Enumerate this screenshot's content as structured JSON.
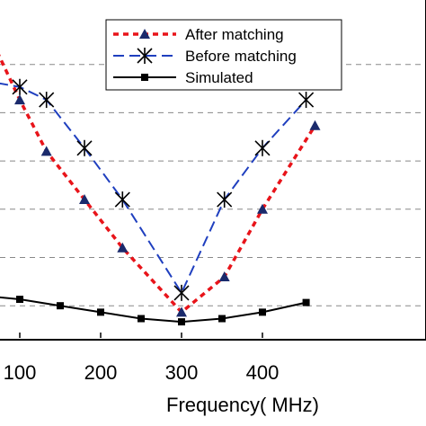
{
  "chart_data": {
    "type": "line",
    "title": "",
    "xlabel": "Frequency( MHz)",
    "ylabel": "",
    "xlim": [
      72,
      474
    ],
    "ylim": [
      0,
      10
    ],
    "x_ticks": [
      100,
      200,
      300,
      400
    ],
    "grid": "horizontal-dashed",
    "legend_position": "top-right",
    "series": [
      {
        "name": "After matching",
        "color": "#e8141a",
        "line_style": "short-dash",
        "marker": "triangle",
        "marker_color": "#1a2a6c",
        "x": [
          72,
          100,
          133,
          180,
          227,
          300,
          353,
          400,
          465
        ],
        "y": [
          8.9,
          7.4,
          5.8,
          4.3,
          2.8,
          0.8,
          1.9,
          4.0,
          6.6
        ],
        "markers": [
          100,
          133,
          180,
          227,
          300,
          353,
          400,
          465
        ]
      },
      {
        "name": "Before matching",
        "color": "#1f3fbf",
        "line_style": "long-dash",
        "marker": "star",
        "marker_color": "#000000",
        "x": [
          20,
          55,
          100,
          133,
          180,
          227,
          300,
          353,
          400,
          454
        ],
        "y": [
          8.6,
          8.0,
          7.8,
          7.4,
          5.9,
          4.3,
          1.4,
          4.3,
          5.9,
          7.4
        ],
        "markers": [
          20,
          100,
          133,
          180,
          227,
          300,
          353,
          400,
          454
        ]
      },
      {
        "name": "Simulated",
        "color": "#000000",
        "line_style": "solid",
        "marker": "square",
        "marker_color": "#000000",
        "x": [
          20,
          100,
          150,
          200,
          250,
          300,
          350,
          400,
          454
        ],
        "y": [
          1.4,
          1.2,
          1.0,
          0.8,
          0.6,
          0.5,
          0.6,
          0.8,
          1.1
        ],
        "markers": [
          20,
          100,
          150,
          200,
          250,
          300,
          350,
          400,
          454
        ]
      }
    ]
  }
}
